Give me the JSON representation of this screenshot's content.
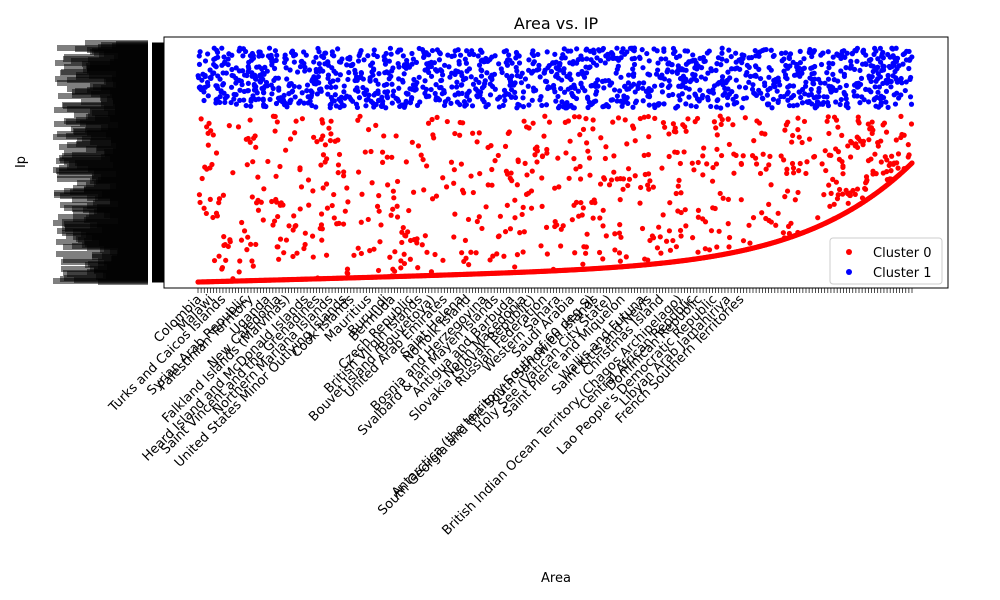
{
  "chart_data": {
    "type": "scatter",
    "title": "Area vs. IP",
    "xlabel": "Area",
    "ylabel": "Ip",
    "legend_position": "lower-right",
    "grid": false,
    "series": [
      {
        "name": "Cluster 0",
        "color": "#ff0000"
      },
      {
        "name": "Cluster 1",
        "color": "#0000ff"
      }
    ],
    "x_tick_labels": [
      "Colombia",
      "Malawi",
      "Turks and Caicos Islands",
      "Syrian Arab Republic",
      "Palestinian Territory",
      "Uganda",
      "New Caledonia",
      "Falkland Islands (Malvinas)",
      "Heard Island and McDonald Islands",
      "Saint Vincent and the Grenadines",
      "Northern Mariana Islands",
      "United States Minor Outlying Islands",
      "Cook Islands",
      "Mauritius",
      "Burundi",
      "Bermuda",
      "Czech Republic",
      "British Virgin Islands",
      "Bouvet Island (Bouvetoya)",
      "United Arab Emirates",
      "Saint Helena",
      "Norfolk Island",
      "Bosnia and Herzegovina",
      "Svalbard & Jan Mayen Islands",
      "Antigua and Barbuda",
      "North Macedonia",
      "Slovakia (Slovak Republic)",
      "Russian Federation",
      "Western Sahara",
      "Saudi Arabia",
      "Antarctica (the territory South of 60 deg S)",
      "South Georgia and the South Sandwich Islands",
      "Holy See (Vatican City State)",
      "Saint Pierre and Miquelon",
      "Wallis and Futuna",
      "Saint Kitts and Nevis",
      "Christmas Island",
      "British Indian Ocean Territory (Chagos Archipelago)",
      "Central African Republic",
      "Dominican Republic",
      "Lao People's Democratic Republic",
      "Libyan Arab Jamahiriya",
      "French Southern Territories"
    ]
  }
}
